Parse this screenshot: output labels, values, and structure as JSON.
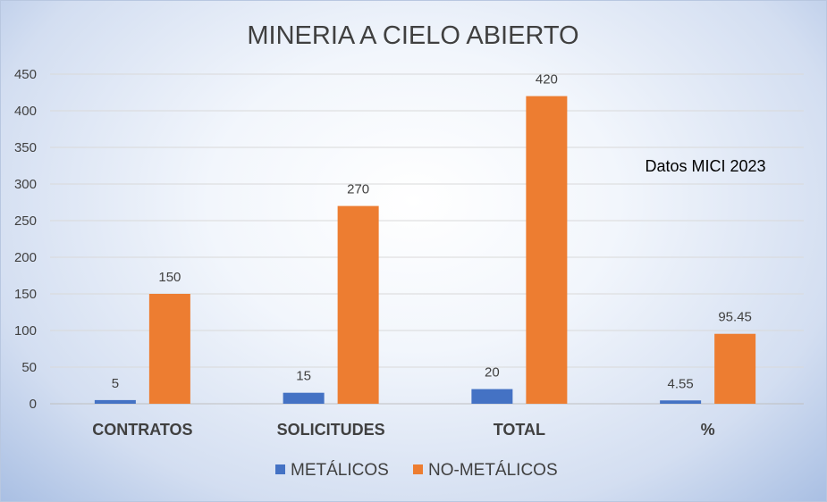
{
  "chart_data": {
    "type": "bar",
    "title": "MINERIA A CIELO ABIERTO",
    "annotation": "Datos MICI 2023",
    "categories": [
      "CONTRATOS",
      "SOLICITUDES",
      "TOTAL",
      "%"
    ],
    "series": [
      {
        "name": "METÁLICOS",
        "color": "#4472C4",
        "values": [
          5,
          15,
          20,
          4.55
        ],
        "labels": [
          "5",
          "15",
          "20",
          "4.55"
        ]
      },
      {
        "name": "NO-METÁLICOS",
        "color": "#ED7D31",
        "values": [
          150,
          270,
          420,
          95.45
        ],
        "labels": [
          "150",
          "270",
          "420",
          "95.45"
        ]
      }
    ],
    "ylim": [
      0,
      450
    ],
    "yticks": [
      0,
      50,
      100,
      150,
      200,
      250,
      300,
      350,
      400,
      450
    ],
    "grid": true,
    "legend_position": "bottom",
    "xlabel": "",
    "ylabel": ""
  }
}
